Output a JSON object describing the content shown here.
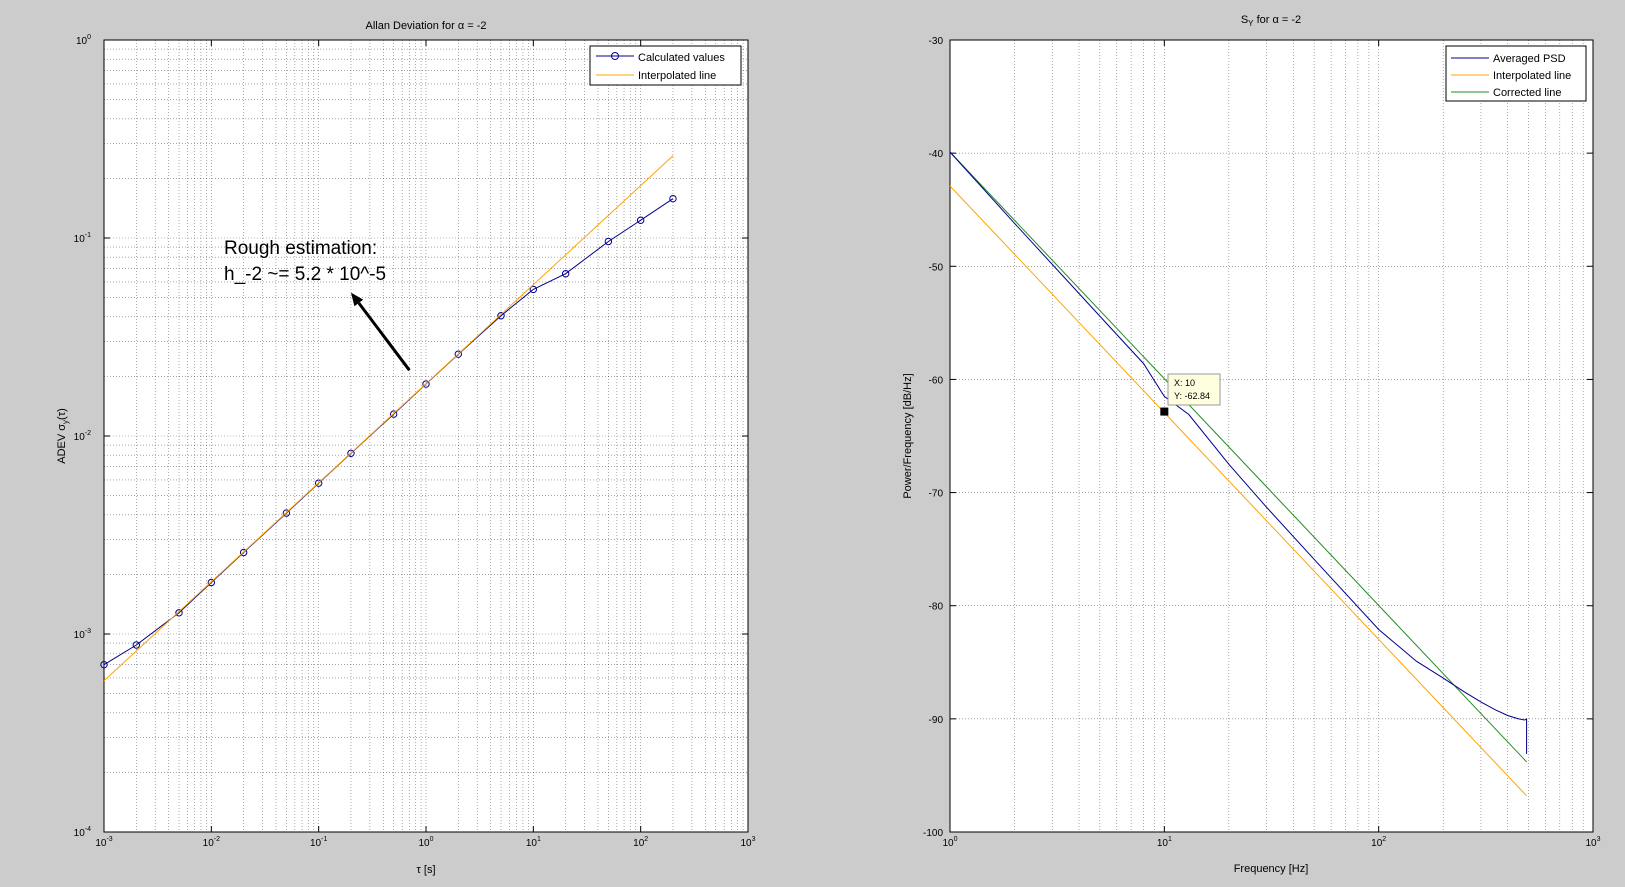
{
  "chart_data": [
    {
      "type": "line",
      "title": "Allan Deviation for α = -2",
      "title_prefix": "Allan Deviation for ",
      "title_alpha": "α",
      "title_suffix": " = -2",
      "xlabel": "τ [s]",
      "ylabel_main": "ADEV σ",
      "ylabel_sub": "y",
      "ylabel_end": "(τ)",
      "xscale": "log",
      "yscale": "log",
      "xlim": [
        0.001,
        1000
      ],
      "ylim": [
        0.0001,
        1
      ],
      "grid": true,
      "legend_position": "top-right",
      "x_ticks": [
        {
          "base": "10",
          "exp": "-3"
        },
        {
          "base": "10",
          "exp": "-2"
        },
        {
          "base": "10",
          "exp": "-1"
        },
        {
          "base": "10",
          "exp": "0"
        },
        {
          "base": "10",
          "exp": "1"
        },
        {
          "base": "10",
          "exp": "2"
        },
        {
          "base": "10",
          "exp": "3"
        }
      ],
      "y_ticks": [
        {
          "base": "10",
          "exp": "-4"
        },
        {
          "base": "10",
          "exp": "-3"
        },
        {
          "base": "10",
          "exp": "-2"
        },
        {
          "base": "10",
          "exp": "-1"
        },
        {
          "base": "10",
          "exp": "0"
        }
      ],
      "series": [
        {
          "name": "Calculated values",
          "color": "#00008b",
          "marker": "circle",
          "x": [
            0.001,
            0.002,
            0.005,
            0.01,
            0.02,
            0.05,
            0.1,
            0.2,
            0.5,
            1,
            2,
            5,
            10,
            20,
            50,
            100,
            200
          ],
          "y": [
            0.0007,
            0.00088,
            0.00128,
            0.00182,
            0.00258,
            0.00408,
            0.00578,
            0.00818,
            0.0129,
            0.0183,
            0.0259,
            0.0405,
            0.055,
            0.066,
            0.096,
            0.123,
            0.158
          ]
        },
        {
          "name": "Interpolated line",
          "color": "#ffa500",
          "marker": "none",
          "x": [
            0.001,
            200
          ],
          "y": [
            0.00058,
            0.26
          ]
        }
      ],
      "annotation": {
        "lines": [
          "Rough estimation:",
          "h_-2 ~= 5.2 * 10^-5"
        ],
        "arrow": {
          "from": [
            0.7,
            0.0215
          ],
          "to": [
            0.2,
            0.053
          ]
        }
      }
    },
    {
      "type": "line",
      "title_main": "S",
      "title_sub": "Y",
      "title_mid": " for ",
      "title_alpha": "α",
      "title_end": " = -2",
      "xlabel": "Frequency [Hz]",
      "ylabel": "Power/Frequency [dB/Hz]",
      "xscale": "log",
      "yscale": "linear",
      "xlim": [
        1,
        1000
      ],
      "ylim": [
        -100,
        -30
      ],
      "grid": true,
      "legend_position": "top-right",
      "x_ticks": [
        {
          "base": "10",
          "exp": "0"
        },
        {
          "base": "10",
          "exp": "1"
        },
        {
          "base": "10",
          "exp": "2"
        },
        {
          "base": "10",
          "exp": "3"
        }
      ],
      "y_ticks": [
        "-100",
        "-90",
        "-80",
        "-70",
        "-60",
        "-50",
        "-40",
        "-30"
      ],
      "series": [
        {
          "name": "Averaged PSD",
          "color": "#00008b",
          "x": [
            1,
            2,
            5,
            8,
            10,
            13,
            20,
            30,
            50,
            100,
            150,
            200,
            250,
            300,
            350,
            400,
            450,
            480,
            490,
            490
          ],
          "y": [
            -39.9,
            -46.2,
            -54.4,
            -58.6,
            -61.5,
            -63.1,
            -67.5,
            -71.3,
            -75.9,
            -82.1,
            -84.9,
            -86.4,
            -87.6,
            -88.5,
            -89.2,
            -89.7,
            -90.0,
            -90.1,
            -90.0,
            -93.1
          ]
        },
        {
          "name": "Interpolated line",
          "color": "#ffa500",
          "x": [
            1,
            490
          ],
          "y": [
            -42.9,
            -96.8
          ]
        },
        {
          "name": "Corrected line",
          "color": "#228b22",
          "x": [
            1,
            490
          ],
          "y": [
            -39.9,
            -93.8
          ]
        }
      ],
      "datatip": {
        "x": 10,
        "y": -62.84,
        "label_x": "X: 10",
        "label_y": "Y: -62.84"
      }
    }
  ]
}
